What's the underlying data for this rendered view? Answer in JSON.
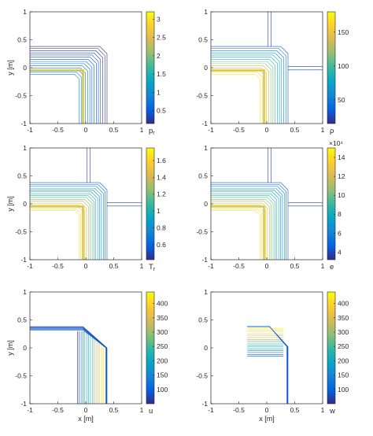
{
  "chart_data": [
    {
      "type": "contour",
      "panel": "top-left",
      "xlabel": "",
      "ylabel": "y [m]",
      "xlim": [
        -1,
        1
      ],
      "ylim": [
        -1,
        1
      ],
      "xticks": [
        "-1",
        "-0.5",
        "0",
        "0.5",
        "1"
      ],
      "yticks": [
        "-1",
        "-0.5",
        "0",
        "0.5",
        "1"
      ],
      "colorbar": {
        "label": "p",
        "sub": "r",
        "exponent": "",
        "range": [
          0.15,
          3.2
        ],
        "ticks": [
          "0.5",
          "1",
          "1.5",
          "2",
          "2.5",
          "3"
        ]
      },
      "features": {
        "hline_right": false,
        "vline_top": false,
        "lines": 14
      }
    },
    {
      "type": "contour",
      "panel": "top-right",
      "xlabel": "",
      "ylabel": "",
      "xlim": [
        -1,
        1
      ],
      "ylim": [
        -1,
        1
      ],
      "xticks": [
        "-1",
        "-0.5",
        "0",
        "0.5",
        "1"
      ],
      "yticks": [
        "-1",
        "-0.5",
        "0",
        "0.5",
        "1"
      ],
      "colorbar": {
        "label": "ρ",
        "sub": "",
        "exponent": "",
        "range": [
          15,
          180
        ],
        "ticks": [
          "50",
          "100",
          "150"
        ]
      },
      "features": {
        "hline_right": true,
        "vline_top": true,
        "lines": 14
      }
    },
    {
      "type": "contour",
      "panel": "middle-left",
      "xlabel": "",
      "ylabel": "y [m]",
      "xlim": [
        -1,
        1
      ],
      "ylim": [
        -1,
        1
      ],
      "xticks": [
        "-1",
        "-0.5",
        "0",
        "0.5",
        "1"
      ],
      "yticks": [
        "-1",
        "-0.5",
        "0",
        "0.5",
        "1"
      ],
      "colorbar": {
        "label": "T",
        "sub": "r",
        "exponent": "",
        "range": [
          0.42,
          1.75
        ],
        "ticks": [
          "0.6",
          "0.8",
          "1",
          "1.2",
          "1.4",
          "1.6"
        ]
      },
      "features": {
        "hline_right": true,
        "vline_top": true,
        "lines": 16
      }
    },
    {
      "type": "contour",
      "panel": "middle-right",
      "xlabel": "",
      "ylabel": "",
      "xlim": [
        -1,
        1
      ],
      "ylim": [
        -1,
        1
      ],
      "xticks": [
        "-1",
        "-0.5",
        "0",
        "0.5",
        "1"
      ],
      "yticks": [
        "-1",
        "-0.5",
        "0",
        "0.5",
        "1"
      ],
      "colorbar": {
        "label": "e",
        "sub": "",
        "exponent": "×10⁴",
        "range": [
          3.2,
          15
        ],
        "ticks": [
          "4",
          "6",
          "8",
          "10",
          "12",
          "14"
        ]
      },
      "features": {
        "hline_right": true,
        "vline_top": true,
        "lines": 16
      }
    },
    {
      "type": "contour",
      "panel": "bottom-left",
      "xlabel": "x [m]",
      "ylabel": "y [m]",
      "xlim": [
        -1,
        1
      ],
      "ylim": [
        -1,
        1
      ],
      "xticks": [
        "-1",
        "-0.5",
        "0",
        "0.5",
        "1"
      ],
      "yticks": [
        "-1",
        "-0.5",
        "0",
        "0.5",
        "1"
      ],
      "colorbar": {
        "label": "u",
        "sub": "",
        "exponent": "",
        "range": [
          50,
          440
        ],
        "ticks": [
          "100",
          "150",
          "200",
          "250",
          "300",
          "350",
          "400"
        ]
      },
      "features": {
        "orientation": "vertical",
        "lines": 16
      }
    },
    {
      "type": "contour",
      "panel": "bottom-right",
      "xlabel": "x [m]",
      "ylabel": "",
      "xlim": [
        -1,
        1
      ],
      "ylim": [
        -1,
        1
      ],
      "xticks": [
        "-1",
        "-0.5",
        "0",
        "0.5",
        "1"
      ],
      "yticks": [
        "-1",
        "-0.5",
        "0",
        "0.5",
        "1"
      ],
      "colorbar": {
        "label": "w",
        "sub": "",
        "exponent": "",
        "range": [
          50,
          440
        ],
        "ticks": [
          "100",
          "150",
          "200",
          "250",
          "300",
          "350",
          "400"
        ]
      },
      "features": {
        "orientation": "horizontal",
        "lines": 16
      }
    }
  ],
  "colors": {
    "parula": [
      "#352a87",
      "#0363e1",
      "#1485d4",
      "#06a7c6",
      "#38b99e",
      "#92bf73",
      "#d9ba56",
      "#fcce2e",
      "#f9fb0e"
    ],
    "axis": "#262626"
  }
}
